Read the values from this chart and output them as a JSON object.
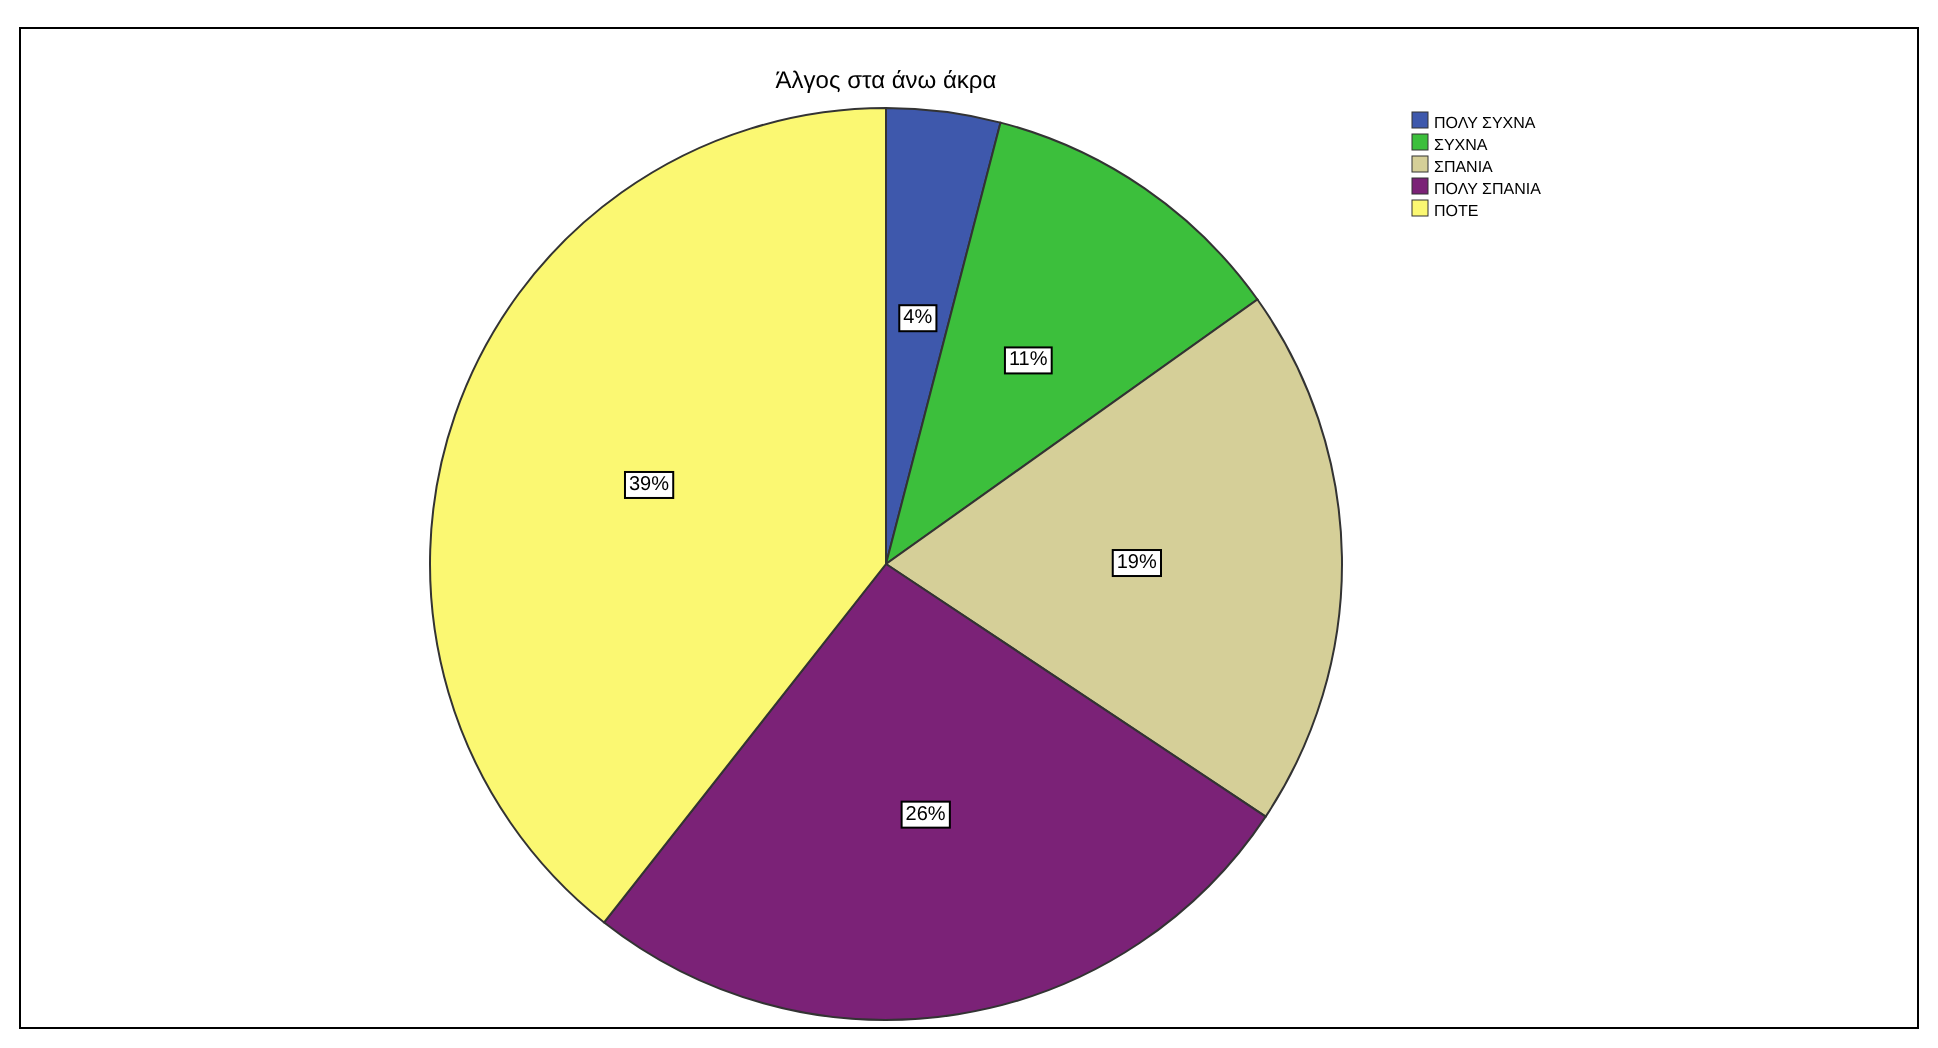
{
  "chart_data": {
    "type": "pie",
    "title": "Άλγος στα άνω άκρα",
    "categories": [
      "ΠΟΛΥ ΣΥΧΝΑ",
      "ΣΥΧΝΑ",
      "ΣΠΑΝΙΑ",
      "ΠΟΛΥ ΣΠΑΝΙΑ",
      "ΠΟΤΕ"
    ],
    "values": [
      4,
      11,
      19,
      26,
      39
    ],
    "colors": [
      "#3e58ac",
      "#3cbf3c",
      "#d5cf98",
      "#7b2277",
      "#fbf872"
    ],
    "value_labels": [
      "4%",
      "11%",
      "19%",
      "26%",
      "39%"
    ],
    "legend": "top right"
  }
}
